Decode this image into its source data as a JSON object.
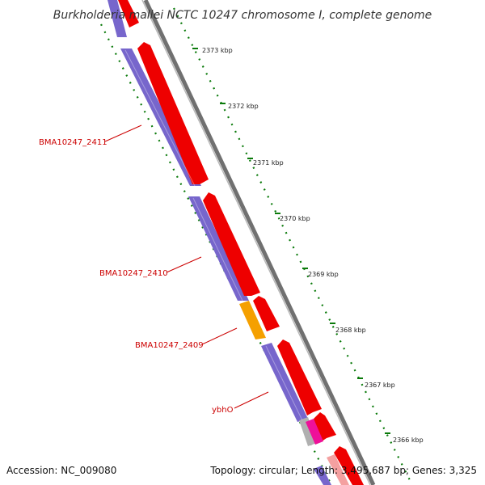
{
  "title": "Burkholderia mallei NCTC 10247 chromosome I, complete genome",
  "footer": {
    "accession": "Accession: NC_009080",
    "summary": "Topology: circular; Length: 3,495,687 bp; Genes: 3,325"
  },
  "ticks": [
    {
      "label": "2373 kbp"
    },
    {
      "label": "2372 kbp"
    },
    {
      "label": "2371 kbp"
    },
    {
      "label": "2370 kbp"
    },
    {
      "label": "2369 kbp"
    },
    {
      "label": "2368 kbp"
    },
    {
      "label": "2367 kbp"
    },
    {
      "label": "2366 kbp"
    }
  ],
  "gene_labels": [
    {
      "label": "BMA10247_2411"
    },
    {
      "label": "BMA10247_2410"
    },
    {
      "label": "BMA10247_2409"
    },
    {
      "label": "ybhO"
    }
  ],
  "colors": {
    "forward_cds": "#ee0000",
    "reverse_cds": "#7766cc",
    "orange_feature": "#f5a000",
    "magenta_feature": "#ee1199",
    "gray_feature": "#b0b0b0",
    "backbone": "#808080",
    "tick_marks": "#0a7a0a",
    "label_text": "#cc0000"
  }
}
